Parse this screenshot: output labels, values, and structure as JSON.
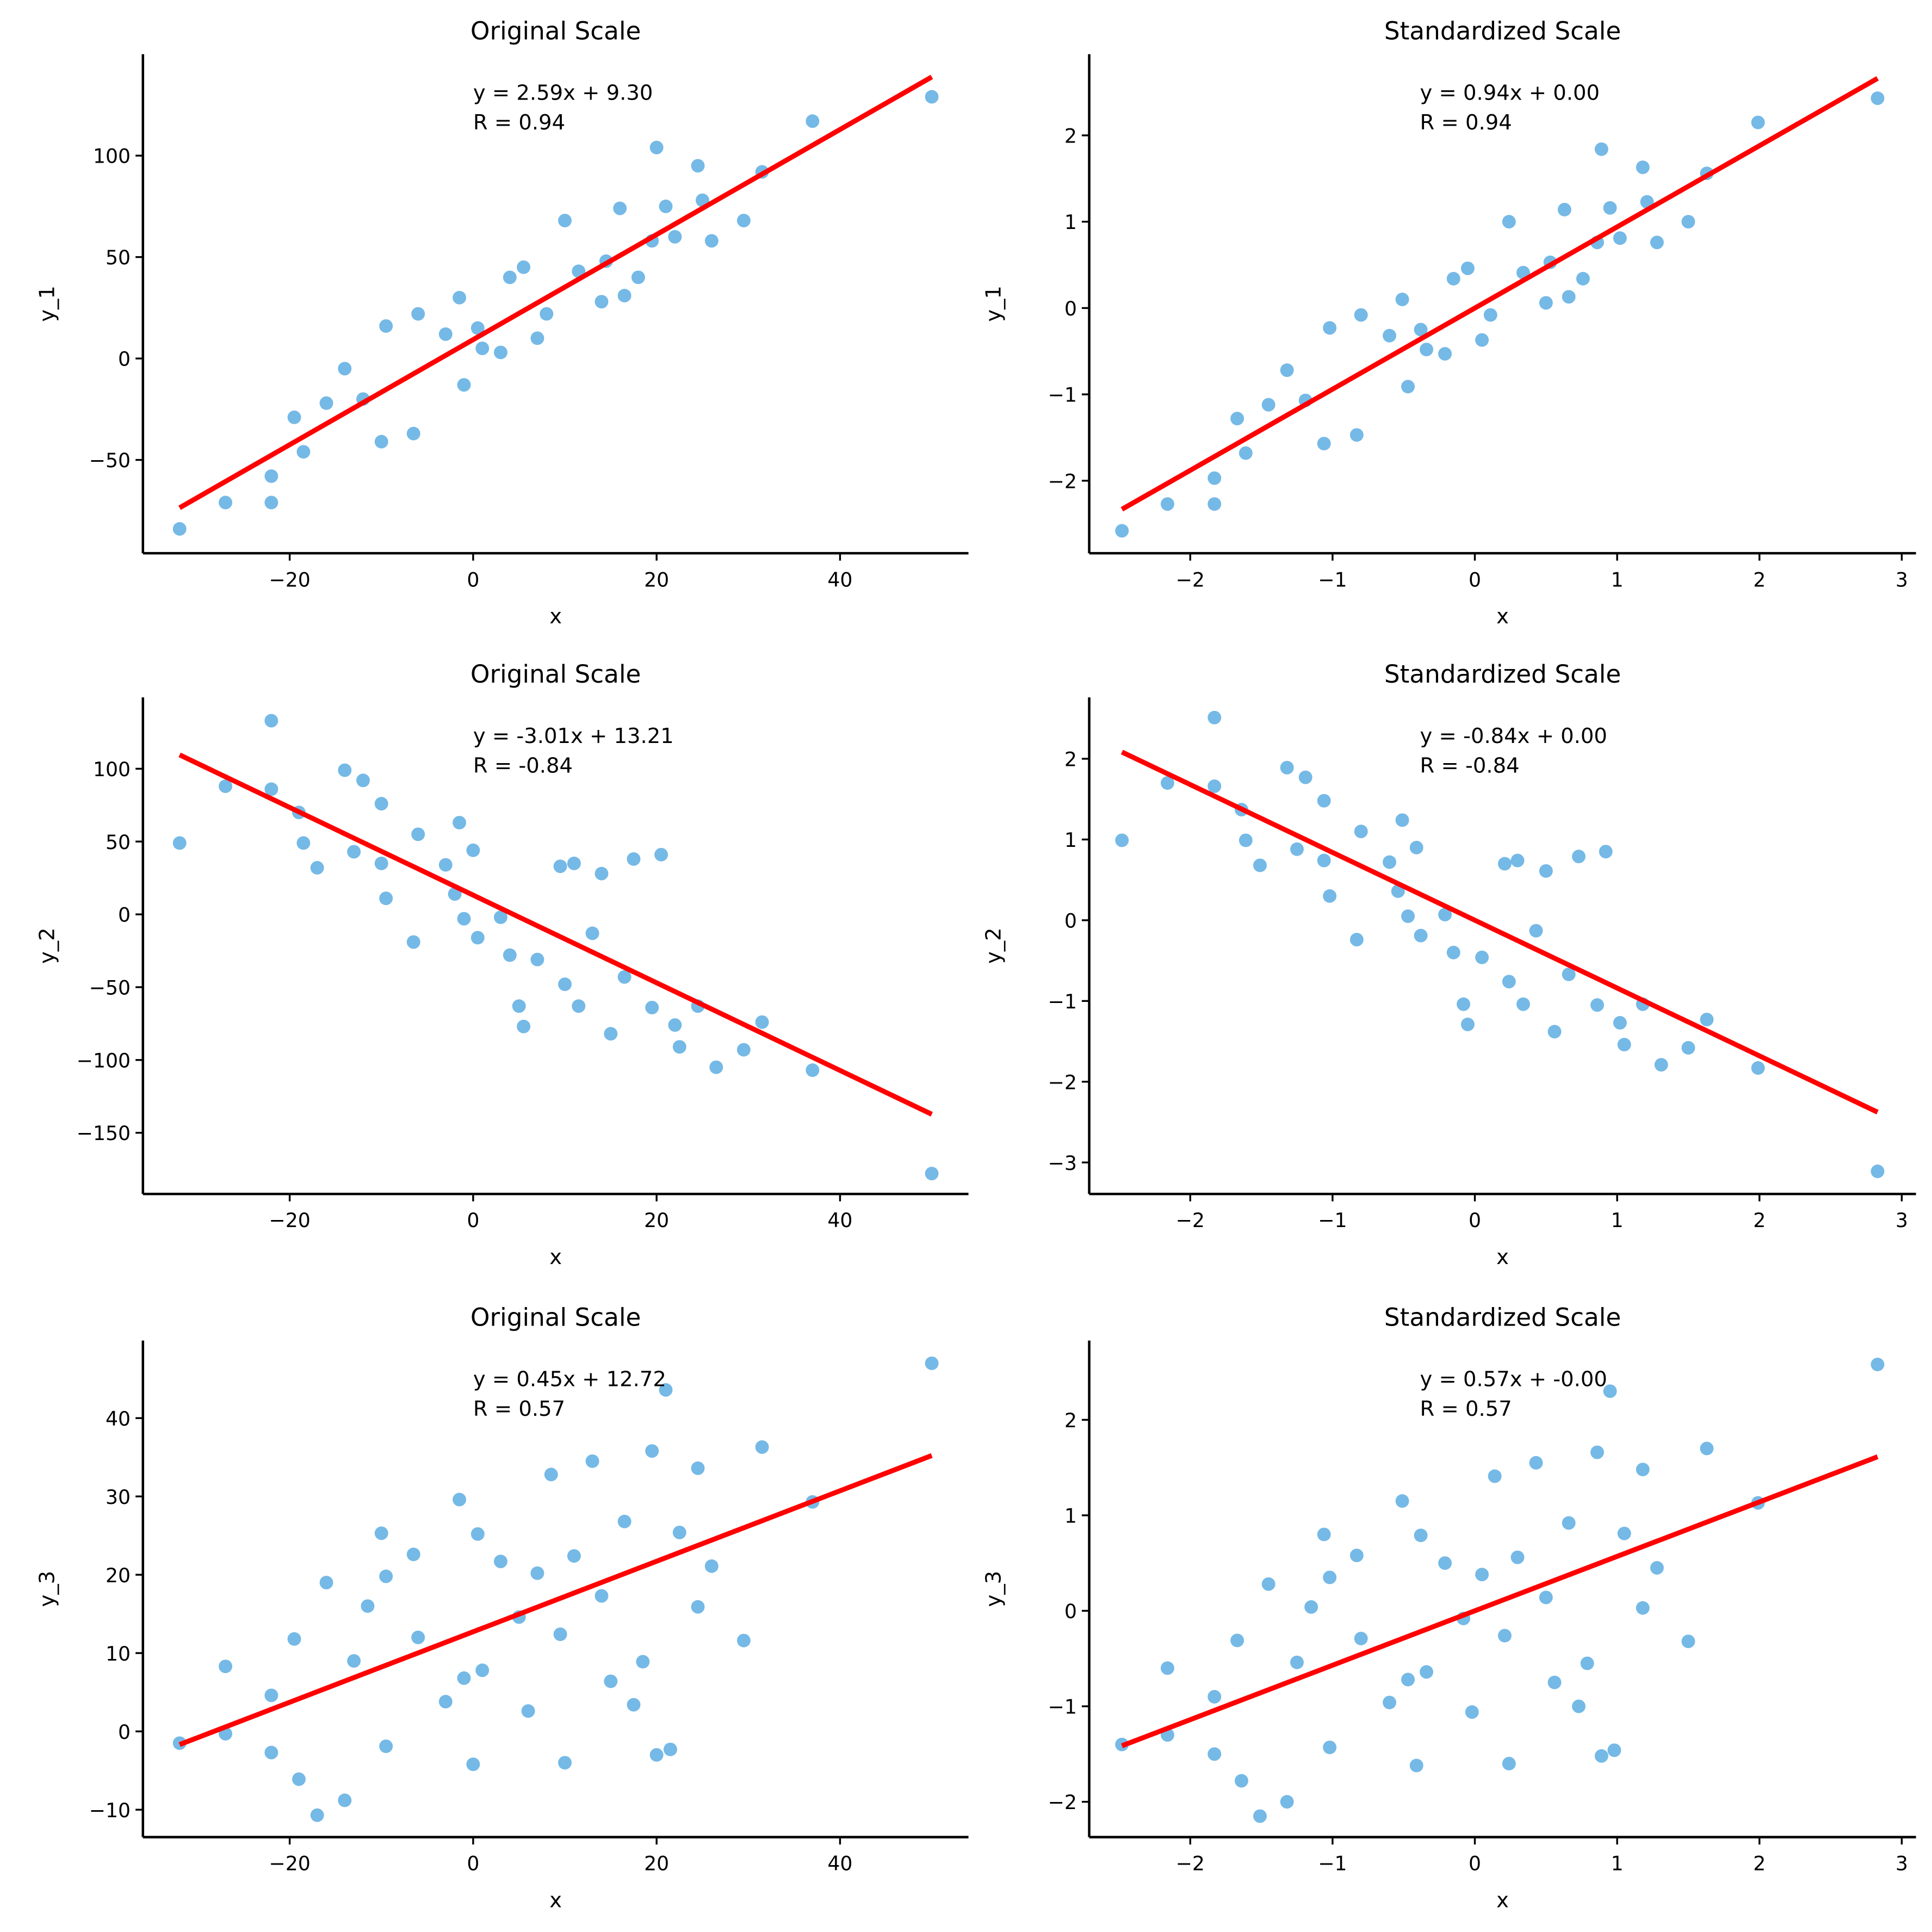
{
  "chart_data": [
    {
      "type": "scatter",
      "title": "Original Scale",
      "xlabel": "x",
      "ylabel": "y_1",
      "color": "#5dade2",
      "annotation": [
        "y = 2.59x + 9.30",
        "R = 0.94"
      ],
      "fit": {
        "slope": 2.59,
        "intercept": 9.3,
        "color": "#ff0000"
      },
      "xlim": [
        -36,
        54
      ],
      "ylim": [
        -96,
        150
      ],
      "xticks": [
        {
          "value": -20,
          "label": "−20"
        },
        0,
        20,
        40
      ],
      "yticks": [
        {
          "value": -50,
          "label": "−50"
        },
        0,
        50,
        100
      ],
      "x": [
        -32,
        -27,
        -22,
        -22,
        -19.5,
        -18.5,
        -16,
        -14,
        -12,
        -10,
        -9.5,
        -6.5,
        -6,
        -3,
        -1.5,
        -1,
        0.5,
        1,
        3,
        4,
        5.5,
        7,
        8,
        10,
        11.5,
        14,
        14.5,
        16,
        16.5,
        18,
        19.5,
        20,
        21,
        22,
        24.5,
        25,
        26,
        29.5,
        31.5,
        37,
        50
      ],
      "y": [
        -84,
        -71,
        -58,
        -71,
        -29,
        -46,
        -22,
        -5,
        -20,
        -41,
        16,
        -37,
        22,
        12,
        30,
        -13,
        15,
        5,
        3,
        40,
        45,
        10,
        22,
        68,
        43,
        28,
        48,
        74,
        31,
        40,
        58,
        104,
        75,
        60,
        95,
        78,
        58,
        68,
        92,
        117,
        129
      ]
    },
    {
      "type": "scatter",
      "title": "Standardized Scale",
      "xlabel": "x",
      "ylabel": "y_1",
      "color": "#5dade2",
      "annotation": [
        "y = 0.94x + 0.00",
        "R = 0.94"
      ],
      "fit": {
        "slope": 0.94,
        "intercept": 0,
        "color": "#ff0000"
      },
      "xlim": [
        -2.71,
        3.1
      ],
      "ylim": [
        -2.84,
        2.94
      ],
      "xticks": [
        {
          "value": -2,
          "label": "−2"
        },
        {
          "value": -1,
          "label": "−1"
        },
        0,
        1,
        2,
        3
      ],
      "yticks": [
        {
          "value": -2,
          "label": "−2"
        },
        {
          "value": -1,
          "label": "−1"
        },
        0,
        1,
        2
      ],
      "x": [
        -2.48,
        -2.16,
        -1.83,
        -1.83,
        -1.67,
        -1.61,
        -1.45,
        -1.32,
        -1.19,
        -1.06,
        -1.02,
        -0.83,
        -0.8,
        -0.6,
        -0.51,
        -0.47,
        -0.38,
        -0.34,
        -0.21,
        -0.15,
        -0.05,
        0.05,
        0.11,
        0.24,
        0.34,
        0.5,
        0.53,
        0.63,
        0.66,
        0.76,
        0.86,
        0.89,
        0.95,
        1.02,
        1.18,
        1.21,
        1.28,
        1.5,
        1.63,
        1.99,
        2.83
      ],
      "y": [
        -2.58,
        -2.27,
        -1.97,
        -2.27,
        -1.28,
        -1.68,
        -1.12,
        -0.72,
        -1.07,
        -1.57,
        -0.23,
        -1.47,
        -0.08,
        -0.32,
        0.1,
        -0.91,
        -0.25,
        -0.48,
        -0.53,
        0.34,
        0.46,
        -0.37,
        -0.08,
        1.0,
        0.41,
        0.06,
        0.53,
        1.14,
        0.13,
        0.34,
        0.76,
        1.84,
        1.16,
        0.81,
        1.63,
        1.23,
        0.76,
        1.0,
        1.56,
        2.15,
        2.43
      ]
    },
    {
      "type": "scatter",
      "title": "Original Scale",
      "xlabel": "x",
      "ylabel": "y_2",
      "color": "#5dade2",
      "annotation": [
        "y = -3.01x + 13.21",
        "R = -0.84"
      ],
      "fit": {
        "slope": -3.01,
        "intercept": 13.21,
        "color": "#ff0000"
      },
      "xlim": [
        -36,
        54
      ],
      "ylim": [
        -192,
        149
      ],
      "xticks": [
        {
          "value": -20,
          "label": "−20"
        },
        0,
        20,
        40
      ],
      "yticks": [
        {
          "value": -150,
          "label": "−150"
        },
        {
          "value": -100,
          "label": "−100"
        },
        {
          "value": -50,
          "label": "−50"
        },
        0,
        50,
        100
      ],
      "x": [
        -32,
        -27,
        -22,
        -22,
        -19,
        -18.5,
        -17,
        -14,
        -13,
        -12,
        -10,
        -10,
        -9.5,
        -6.5,
        -6,
        -3,
        -2,
        -1.5,
        -1,
        0,
        0.5,
        3,
        4,
        5,
        5.5,
        7,
        9.5,
        10,
        11,
        11.5,
        13,
        14,
        15,
        16.5,
        17.5,
        19.5,
        20.5,
        22,
        22.5,
        24.5,
        26.5,
        29.5,
        31.5,
        37,
        50
      ],
      "y": [
        49,
        88,
        133,
        86,
        70,
        49,
        32,
        99,
        43,
        92,
        76,
        35,
        11,
        -19,
        55,
        34,
        14,
        63,
        -3,
        44,
        -16,
        -2,
        -28,
        -63,
        -77,
        -31,
        33,
        -48,
        35,
        -63,
        -13,
        28,
        -82,
        -43,
        38,
        -64,
        41,
        -76,
        -91,
        -63,
        -105,
        -93,
        -74,
        -107,
        -178
      ]
    },
    {
      "type": "scatter",
      "title": "Standardized Scale",
      "xlabel": "x",
      "ylabel": "y_2",
      "color": "#5dade2",
      "annotation": [
        "y = -0.84x + 0.00",
        "R = -0.84"
      ],
      "fit": {
        "slope": -0.84,
        "intercept": 0,
        "color": "#ff0000"
      },
      "xlim": [
        -2.71,
        3.1
      ],
      "ylim": [
        -3.39,
        2.76
      ],
      "xticks": [
        {
          "value": -2,
          "label": "−2"
        },
        {
          "value": -1,
          "label": "−1"
        },
        0,
        1,
        2,
        3
      ],
      "yticks": [
        {
          "value": -3,
          "label": "−3"
        },
        {
          "value": -2,
          "label": "−2"
        },
        {
          "value": -1,
          "label": "−1"
        },
        0,
        1,
        2
      ],
      "x": [
        -2.48,
        -2.16,
        -1.83,
        -1.83,
        -1.64,
        -1.61,
        -1.51,
        -1.32,
        -1.25,
        -1.19,
        -1.06,
        -1.06,
        -1.02,
        -0.83,
        -0.8,
        -0.6,
        -0.54,
        -0.51,
        -0.47,
        -0.41,
        -0.38,
        -0.21,
        -0.15,
        -0.08,
        -0.05,
        0.05,
        0.21,
        0.24,
        0.3,
        0.34,
        0.43,
        0.5,
        0.56,
        0.66,
        0.73,
        0.86,
        0.92,
        1.02,
        1.05,
        1.18,
        1.31,
        1.5,
        1.63,
        1.99,
        2.83
      ],
      "y": [
        0.99,
        1.7,
        2.51,
        1.66,
        1.37,
        0.99,
        0.68,
        1.89,
        0.88,
        1.77,
        1.48,
        0.74,
        0.3,
        -0.24,
        1.1,
        0.72,
        0.36,
        1.24,
        0.05,
        0.9,
        -0.19,
        0.07,
        -0.4,
        -1.04,
        -1.29,
        -0.46,
        0.7,
        -0.76,
        0.74,
        -1.04,
        -0.13,
        0.61,
        -1.38,
        -0.67,
        0.79,
        -1.05,
        0.85,
        -1.27,
        -1.54,
        -1.04,
        -1.79,
        -1.58,
        -1.23,
        -1.83,
        -3.11
      ]
    },
    {
      "type": "scatter",
      "title": "Original Scale",
      "xlabel": "x",
      "ylabel": "y_3",
      "color": "#5dade2",
      "annotation": [
        "y = 0.45x + 12.72",
        "R = 0.57"
      ],
      "fit": {
        "slope": 0.45,
        "intercept": 12.72,
        "color": "#ff0000"
      },
      "xlim": [
        -36,
        54
      ],
      "ylim": [
        -13.5,
        49.9
      ],
      "xticks": [
        {
          "value": -20,
          "label": "−20"
        },
        0,
        20,
        40
      ],
      "yticks": [
        {
          "value": -10,
          "label": "−10"
        },
        0,
        10,
        20,
        30,
        40
      ],
      "x": [
        -32,
        -27,
        -27,
        -22,
        -22,
        -19.5,
        -19,
        -17,
        -16,
        -14,
        -13,
        -11.5,
        -10,
        -9.5,
        -9.5,
        -6.5,
        -6,
        -3,
        -1.5,
        -1,
        0,
        0.5,
        1,
        3,
        5,
        6,
        7,
        8.5,
        9.5,
        10,
        11,
        13,
        14,
        15,
        16.5,
        17.5,
        18.5,
        19.5,
        20,
        21,
        21.5,
        22.5,
        24.5,
        24.5,
        26,
        29.5,
        31.5,
        37,
        50
      ],
      "y": [
        -1.5,
        8.3,
        -0.3,
        4.6,
        -2.7,
        11.8,
        -6.1,
        -10.7,
        19,
        -8.8,
        9,
        16,
        25.3,
        19.8,
        -1.9,
        22.6,
        12,
        3.8,
        29.6,
        6.8,
        -4.2,
        25.2,
        7.8,
        21.7,
        14.6,
        2.6,
        20.2,
        32.8,
        12.4,
        -4,
        22.4,
        34.5,
        17.3,
        6.4,
        26.8,
        3.4,
        8.9,
        35.8,
        -3,
        43.6,
        -2.3,
        25.4,
        33.6,
        15.9,
        21.1,
        11.6,
        36.3,
        29.3,
        47
      ]
    },
    {
      "type": "scatter",
      "title": "Standardized Scale",
      "xlabel": "x",
      "ylabel": "y_3",
      "color": "#5dade2",
      "annotation": [
        "y = 0.57x + -0.00",
        "R = 0.57"
      ],
      "fit": {
        "slope": 0.57,
        "intercept": 0,
        "color": "#ff0000"
      },
      "xlim": [
        -2.71,
        3.1
      ],
      "ylim": [
        -2.37,
        2.83
      ],
      "xticks": [
        {
          "value": -2,
          "label": "−2"
        },
        {
          "value": -1,
          "label": "−1"
        },
        0,
        1,
        2,
        3
      ],
      "yticks": [
        {
          "value": -2,
          "label": "−2"
        },
        {
          "value": -1,
          "label": "−1"
        },
        0,
        1,
        2
      ],
      "x": [
        -2.48,
        -2.16,
        -2.16,
        -1.83,
        -1.83,
        -1.67,
        -1.64,
        -1.51,
        -1.45,
        -1.32,
        -1.25,
        -1.15,
        -1.06,
        -1.02,
        -1.02,
        -0.83,
        -0.8,
        -0.6,
        -0.51,
        -0.47,
        -0.41,
        -0.38,
        -0.34,
        -0.21,
        -0.08,
        -0.02,
        0.05,
        0.14,
        0.21,
        0.24,
        0.3,
        0.43,
        0.5,
        0.56,
        0.66,
        0.73,
        0.79,
        0.86,
        0.89,
        0.95,
        0.98,
        1.05,
        1.18,
        1.18,
        1.28,
        1.5,
        1.63,
        1.99,
        2.83
      ],
      "y": [
        -1.4,
        -0.6,
        -1.3,
        -0.9,
        -1.5,
        -0.31,
        -1.78,
        -2.15,
        0.28,
        -2.0,
        -0.54,
        0.04,
        0.8,
        0.35,
        -1.43,
        0.58,
        -0.29,
        -0.96,
        1.15,
        -0.72,
        -1.62,
        0.79,
        -0.64,
        0.5,
        -0.08,
        -1.06,
        0.38,
        1.41,
        -0.26,
        -1.6,
        0.56,
        1.55,
        0.14,
        -0.75,
        0.92,
        -1.0,
        -0.55,
        1.66,
        -1.52,
        2.3,
        -1.46,
        0.81,
        1.48,
        0.03,
        0.45,
        -0.32,
        1.7,
        1.13,
        2.58
      ]
    }
  ]
}
